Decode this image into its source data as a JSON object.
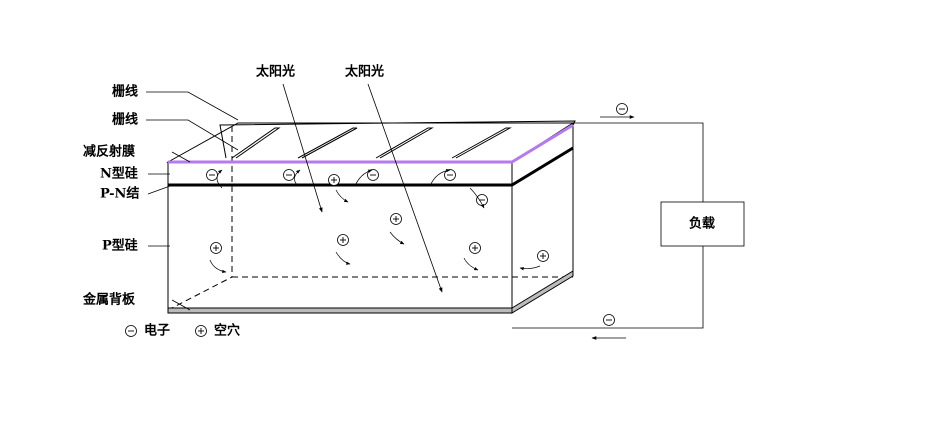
{
  "labels": [
    "栅线",
    "栅线",
    "减反射膜",
    "N型硅",
    "P-N结",
    "P型硅",
    "金属背板"
  ],
  "sunlight": [
    "太阳光",
    "太阳光"
  ],
  "load": "负载",
  "legend": {
    "electron": "电子",
    "hole": "空穴"
  }
}
